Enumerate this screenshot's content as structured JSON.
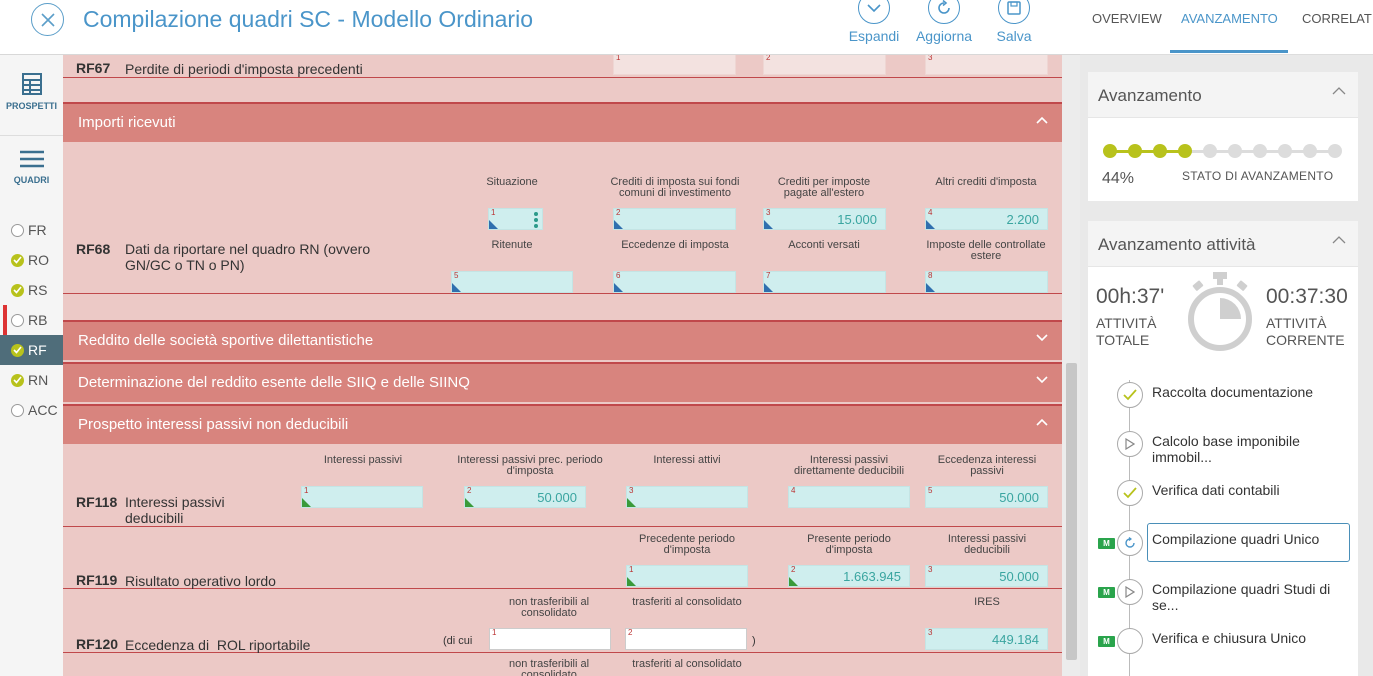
{
  "header": {
    "title": "Compilazione quadri SC - Modello Ordinario",
    "buttons": {
      "expand": "Espandi",
      "refresh": "Aggiorna",
      "save": "Salva"
    }
  },
  "rail": {
    "tools": {
      "prospetti": "PROSPETTI",
      "quadri": "QUADRI"
    },
    "items": [
      {
        "code": "FR",
        "status": "empty"
      },
      {
        "code": "RO",
        "status": "done"
      },
      {
        "code": "RS",
        "status": "done"
      },
      {
        "code": "RB",
        "status": "empty"
      },
      {
        "code": "RF",
        "status": "done"
      },
      {
        "code": "RN",
        "status": "done"
      },
      {
        "code": "ACC",
        "status": "empty"
      }
    ]
  },
  "rows": {
    "rf67": {
      "code": "RF67",
      "desc": "Perdite di periodi d'imposta precedenti",
      "fields": [
        {
          "n": "1"
        },
        {
          "n": "2"
        },
        {
          "n": "3"
        }
      ]
    },
    "importi": {
      "title": "Importi ricevuti"
    },
    "rf68": {
      "code": "RF68",
      "desc": "Dati da riportare nel quadro RN (ovvero GN/GC o TN o PN)",
      "labels": [
        "Situazione",
        "Crediti di imposta sui fondi comuni di investimento",
        "Crediti per imposte pagate all'estero",
        "Altri crediti d'imposta",
        "Ritenute",
        "Eccedenze di imposta",
        "Acconti versati",
        "Imposte delle controllate estere"
      ],
      "fields": [
        {
          "n": "1",
          "value": ""
        },
        {
          "n": "2",
          "value": ""
        },
        {
          "n": "3",
          "value": "15.000"
        },
        {
          "n": "4",
          "value": "2.200"
        },
        {
          "n": "5",
          "value": ""
        },
        {
          "n": "6",
          "value": ""
        },
        {
          "n": "7",
          "value": ""
        },
        {
          "n": "8",
          "value": ""
        }
      ]
    },
    "sec_sportive": {
      "title": "Reddito delle società sportive dilettantistiche"
    },
    "sec_siiq": {
      "title": "Determinazione del reddito esente delle SIIQ e delle SIINQ"
    },
    "sec_interessi": {
      "title": "Prospetto interessi passivi non deducibili"
    },
    "rf118": {
      "code": "RF118",
      "desc": "Interessi passivi deducibili",
      "labels": [
        "Interessi passivi",
        "Interessi passivi prec. periodo d'imposta",
        "Interessi attivi",
        "Interessi passivi direttamente deducibili",
        "Eccedenza interessi passivi"
      ],
      "fields": [
        {
          "n": "1",
          "value": ""
        },
        {
          "n": "2",
          "value": "50.000"
        },
        {
          "n": "3",
          "value": ""
        },
        {
          "n": "4",
          "value": ""
        },
        {
          "n": "5",
          "value": "50.000"
        }
      ]
    },
    "rf119": {
      "code": "RF119",
      "desc": "Risultato operativo lordo",
      "labels": [
        "Precedente periodo d'imposta",
        "Presente periodo d'imposta",
        "Interessi passivi deducibili"
      ],
      "fields": [
        {
          "n": "1",
          "value": ""
        },
        {
          "n": "2",
          "value": "1.663.945"
        },
        {
          "n": "3",
          "value": "50.000"
        }
      ]
    },
    "rf120": {
      "code": "RF120",
      "desc": "Eccedenza di  ROL riportabile",
      "dicui": "(di cui",
      "close": ")",
      "labels": [
        "non trasferibili al consolidato",
        "trasferiti al consolidato",
        "IRES"
      ],
      "fields": [
        {
          "n": "1",
          "value": ""
        },
        {
          "n": "2",
          "value": ""
        },
        {
          "n": "3",
          "value": "449.184"
        }
      ]
    },
    "rf121": {
      "labels": [
        "non trasferibili al consolidato",
        "trasferiti al consolidato"
      ]
    }
  },
  "rpanel": {
    "tabs": [
      "OVERVIEW",
      "AVANZAMENTO",
      "CORRELATI"
    ],
    "active_tab": "AVANZAMENTO",
    "progress": {
      "title": "Avanzamento",
      "percent_label": "44%",
      "percent": 44,
      "steps_total": 10,
      "steps_done": 4,
      "status_label": "STATO DI AVANZAMENTO",
      "done_color": "#b8c21c",
      "todo_color": "#dcdcdc"
    },
    "activity": {
      "title": "Avanzamento attività",
      "total_time": "00h:37'",
      "total_label": "ATTIVITÀ TOTALE",
      "current_time": "00:37:30",
      "current_label": "ATTIVITÀ CORRENTE",
      "steps": [
        {
          "label": "Raccolta documentazione",
          "state": "done",
          "badge": ""
        },
        {
          "label": "Calcolo base imponibile immobil...",
          "state": "play",
          "badge": ""
        },
        {
          "label": "Verifica dati contabili",
          "state": "done",
          "badge": ""
        },
        {
          "label": "Compilazione quadri Unico",
          "state": "current",
          "badge": "M"
        },
        {
          "label": "Compilazione quadri Studi di se...",
          "state": "play",
          "badge": "M"
        },
        {
          "label": "Verifica e chiusura Unico",
          "state": "todo",
          "badge": "M"
        }
      ]
    }
  },
  "colors": {
    "accent": "#4a95c9",
    "section_red": "#d8847e",
    "form_bg": "#ecc9c6",
    "field_teal": "#cfeeee",
    "done_green": "#b8c21c"
  }
}
